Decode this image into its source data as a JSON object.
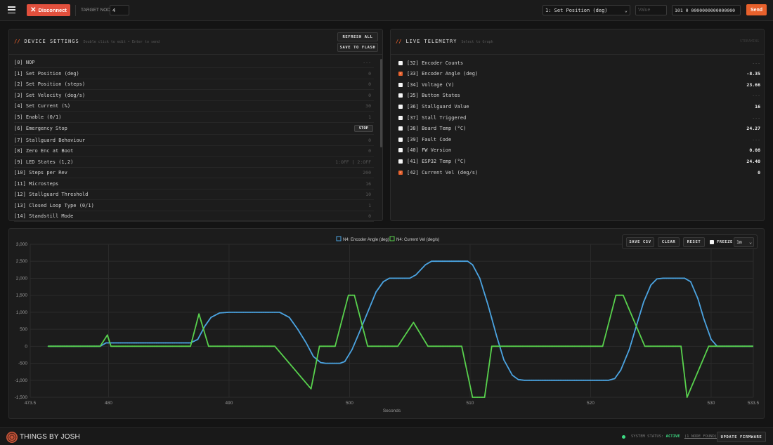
{
  "topbar": {
    "disconnect_label": "Disconnect",
    "target_node_label": "TARGET NODE",
    "target_node_value": "4",
    "command_selected": "1: Set Position (deg)",
    "value_placeholder": "Value",
    "raw_frame": "101 0 0000000000000000",
    "send_label": "Send"
  },
  "device_settings": {
    "title_prefix": "//",
    "title": "DEVICE SETTINGS",
    "subtitle": "Double click to edit • Enter to send",
    "refresh_label": "REFRESH ALL",
    "save_flash_label": "SAVE TO FLASH",
    "rows": [
      {
        "label": "[0] NOP",
        "value": "---"
      },
      {
        "label": "[1] Set Position (deg)",
        "value": "0"
      },
      {
        "label": "[2] Set Position (steps)",
        "value": "0"
      },
      {
        "label": "[3] Set Velocity (deg/s)",
        "value": "0"
      },
      {
        "label": "[4] Set Current (%)",
        "value": "30"
      },
      {
        "label": "[5] Enable (0/1)",
        "value": "1"
      },
      {
        "label": "[6] Emergency Stop",
        "value": "STOP"
      },
      {
        "label": "[7] Stallguard Behaviour",
        "value": "0"
      },
      {
        "label": "[8] Zero Enc at Boot",
        "value": "0"
      },
      {
        "label": "[9] LED States (1,2)",
        "value": "1:OFF | 2:OFF"
      },
      {
        "label": "[10] Steps per Rev",
        "value": "200"
      },
      {
        "label": "[11] Microsteps",
        "value": "16"
      },
      {
        "label": "[12] Stallguard Threshold",
        "value": "10"
      },
      {
        "label": "[13] Closed Loop Type (0/1)",
        "value": "1"
      },
      {
        "label": "[14] Standstill Mode",
        "value": "0"
      }
    ]
  },
  "telemetry": {
    "title_prefix": "//",
    "title": "LIVE TELEMETRY",
    "subtitle": "Select to Graph",
    "status": "STREAMING",
    "rows": [
      {
        "label": "[32] Encoder Counts",
        "value": "---",
        "checked": false
      },
      {
        "label": "[33] Encoder Angle (deg)",
        "value": "-8.35",
        "checked": true
      },
      {
        "label": "[34] Voltage (V)",
        "value": "23.66",
        "checked": false
      },
      {
        "label": "[35] Button States",
        "value": "---",
        "checked": false
      },
      {
        "label": "[36] Stallguard Value",
        "value": "16",
        "checked": false
      },
      {
        "label": "[37] Stall Triggered",
        "value": "---",
        "checked": false
      },
      {
        "label": "[38] Board Temp (°C)",
        "value": "24.27",
        "checked": false
      },
      {
        "label": "[39] Fault Code",
        "value": "---",
        "checked": false
      },
      {
        "label": "[40] FW Version",
        "value": "0.08",
        "checked": false
      },
      {
        "label": "[41] ESP32 Temp (°C)",
        "value": "24.40",
        "checked": false
      },
      {
        "label": "[42] Current Vel (deg/s)",
        "value": "0",
        "checked": true
      }
    ]
  },
  "graph_controls": {
    "save_csv": "SAVE CSV",
    "clear": "CLEAR",
    "reset": "RESET",
    "freeze": "FREEZE",
    "window": "1m"
  },
  "chart_data": {
    "type": "line",
    "title": "",
    "xlabel": "Seconds",
    "ylabel": "",
    "xlim": [
      473.5,
      533.5
    ],
    "ylim": [
      -1500,
      3000
    ],
    "x_ticks": [
      473.5,
      480,
      490,
      500,
      510,
      520,
      530,
      533.5
    ],
    "x_tick_labels": [
      "473.5",
      "480",
      "490",
      "500",
      "510",
      "520",
      "530",
      "533.5"
    ],
    "y_ticks": [
      3000,
      2500,
      2000,
      1500,
      1000,
      500,
      0,
      -500,
      -1000,
      -1500
    ],
    "y_tick_labels": [
      "3,000",
      "2,500",
      "2,000",
      "1,500",
      "1,000",
      "500",
      "0",
      "-500",
      "-1,000",
      "-1,500"
    ],
    "grid": true,
    "legend": "top-center",
    "series": [
      {
        "name": "N4: Encoder Angle (deg)",
        "color": "#4ba3e0",
        "points": [
          [
            475,
            0
          ],
          [
            479.3,
            0
          ],
          [
            479.8,
            100
          ],
          [
            486.8,
            100
          ],
          [
            487.4,
            200
          ],
          [
            488,
            600
          ],
          [
            488.5,
            850
          ],
          [
            489.2,
            980
          ],
          [
            490,
            1000
          ],
          [
            494.2,
            1000
          ],
          [
            495,
            850
          ],
          [
            495.7,
            500
          ],
          [
            496.4,
            100
          ],
          [
            497,
            -300
          ],
          [
            497.6,
            -480
          ],
          [
            498,
            -500
          ],
          [
            499.2,
            -500
          ],
          [
            499.6,
            -450
          ],
          [
            500.2,
            -100
          ],
          [
            500.8,
            400
          ],
          [
            501.5,
            1000
          ],
          [
            502.2,
            1600
          ],
          [
            502.8,
            1900
          ],
          [
            503.3,
            2000
          ],
          [
            505,
            2000
          ],
          [
            505.5,
            2100
          ],
          [
            506.3,
            2400
          ],
          [
            506.8,
            2500
          ],
          [
            509.8,
            2500
          ],
          [
            510.2,
            2400
          ],
          [
            510.8,
            2000
          ],
          [
            511.5,
            1200
          ],
          [
            512.2,
            300
          ],
          [
            512.8,
            -400
          ],
          [
            513.5,
            -850
          ],
          [
            514,
            -980
          ],
          [
            514.5,
            -1000
          ],
          [
            521.5,
            -1000
          ],
          [
            522,
            -950
          ],
          [
            522.5,
            -700
          ],
          [
            523.2,
            -100
          ],
          [
            523.8,
            600
          ],
          [
            524.4,
            1300
          ],
          [
            525,
            1800
          ],
          [
            525.5,
            1980
          ],
          [
            526,
            2000
          ],
          [
            527.8,
            2000
          ],
          [
            528.3,
            1900
          ],
          [
            528.9,
            1400
          ],
          [
            529.4,
            800
          ],
          [
            530,
            200
          ],
          [
            530.5,
            0
          ],
          [
            533.5,
            0
          ]
        ]
      },
      {
        "name": "N4: Current Vel (deg/s)",
        "color": "#58d14d",
        "points": [
          [
            475,
            0
          ],
          [
            479.3,
            0
          ],
          [
            479.9,
            330
          ],
          [
            480.2,
            0
          ],
          [
            486.8,
            0
          ],
          [
            487.5,
            950
          ],
          [
            488.3,
            0
          ],
          [
            493.8,
            0
          ],
          [
            496.8,
            -1250
          ],
          [
            497.5,
            0
          ],
          [
            498.3,
            0
          ],
          [
            498.8,
            0
          ],
          [
            499.9,
            1500
          ],
          [
            500.4,
            1500
          ],
          [
            501.5,
            0
          ],
          [
            502.7,
            0
          ],
          [
            504,
            0
          ],
          [
            505.3,
            700
          ],
          [
            506.5,
            0
          ],
          [
            509.3,
            0
          ],
          [
            510.2,
            -1500
          ],
          [
            511.2,
            -1500
          ],
          [
            511.8,
            0
          ],
          [
            518.8,
            0
          ],
          [
            521,
            0
          ],
          [
            522.1,
            1500
          ],
          [
            522.7,
            1500
          ],
          [
            524.5,
            0
          ],
          [
            527.5,
            0
          ],
          [
            528,
            -1500
          ],
          [
            529.8,
            0
          ],
          [
            533.5,
            0
          ]
        ]
      }
    ]
  },
  "status": {
    "brand": "THINGS BY JOSH",
    "system_status_label": "SYSTEM STATUS:",
    "system_status_value": "ACTIVE",
    "nodes_found": "(1 NODE FOUND)",
    "update_firmware": "UPDATE FIRMWARE"
  }
}
